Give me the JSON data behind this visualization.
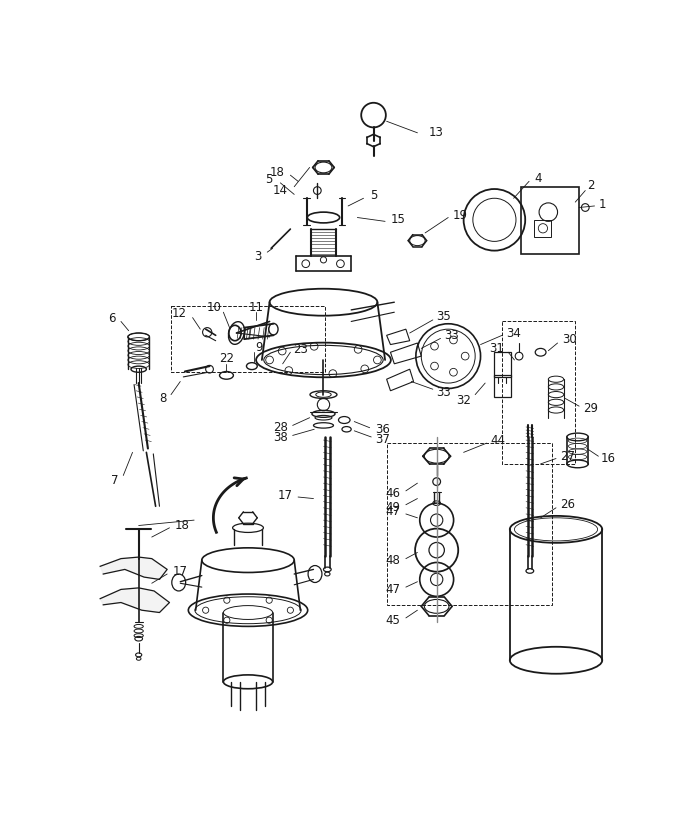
{
  "bg_color": "#ffffff",
  "fig_width": 6.77,
  "fig_height": 8.18,
  "dpi": 100,
  "gray": "#1a1a1a",
  "lw_main": 1.2,
  "lw_thin": 0.7,
  "lw_leader": 0.6,
  "fontsize": 8.5
}
